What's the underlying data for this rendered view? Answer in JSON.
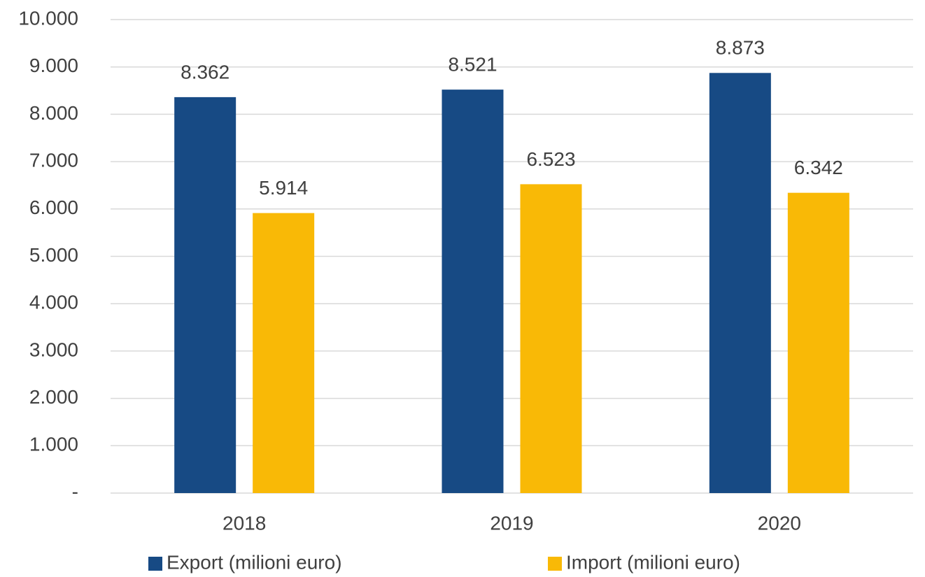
{
  "chart_data": {
    "type": "bar",
    "categories": [
      "2018",
      "2019",
      "2020"
    ],
    "series": [
      {
        "name": "Export (milioni euro)",
        "color": "#174a84",
        "values": [
          8362,
          8521,
          8873
        ],
        "value_labels": [
          "8.362",
          "8.521",
          "8.873"
        ]
      },
      {
        "name": "Import (milioni euro)",
        "color": "#f9b906",
        "values": [
          5914,
          6523,
          6342
        ],
        "value_labels": [
          "5.914",
          "6.523",
          "6.342"
        ]
      }
    ],
    "ylim": [
      0,
      10000
    ],
    "yticks": [
      {
        "value": 0,
        "label": "-"
      },
      {
        "value": 1000,
        "label": "1.000"
      },
      {
        "value": 2000,
        "label": "2.000"
      },
      {
        "value": 3000,
        "label": "3.000"
      },
      {
        "value": 4000,
        "label": "4.000"
      },
      {
        "value": 5000,
        "label": "5.000"
      },
      {
        "value": 6000,
        "label": "6.000"
      },
      {
        "value": 7000,
        "label": "7.000"
      },
      {
        "value": 8000,
        "label": "8.000"
      },
      {
        "value": 9000,
        "label": "9.000"
      },
      {
        "value": 10000,
        "label": "10.000"
      }
    ],
    "grid": true,
    "legend": "bottom"
  }
}
